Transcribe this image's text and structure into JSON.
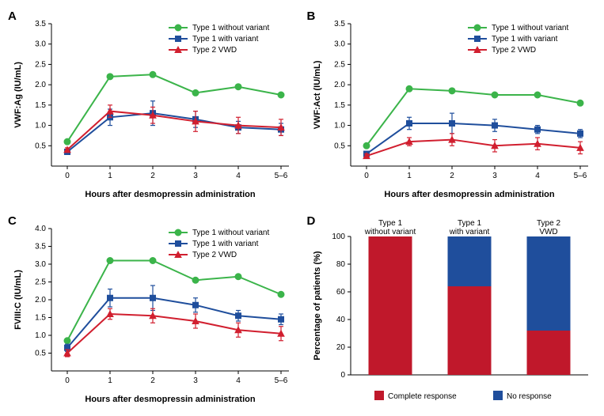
{
  "colors": {
    "type1_no_variant": "#3bb44a",
    "type1_variant": "#1f4e9c",
    "type2": "#d11f2f",
    "complete": "#c0182b",
    "noresp": "#1f4e9c",
    "axis": "#000000",
    "bg": "#ffffff"
  },
  "legend_series": [
    {
      "key": "type1_no_variant",
      "label": "Type 1 without variant",
      "marker": "circle"
    },
    {
      "key": "type1_variant",
      "label": "Type 1 with variant",
      "marker": "square"
    },
    {
      "key": "type2",
      "label": "Type 2 VWD",
      "marker": "triangle"
    }
  ],
  "x_categories": [
    "0",
    "1",
    "2",
    "3",
    "4",
    "5–6"
  ],
  "panels": {
    "A": {
      "label": "A",
      "ylabel": "VWF:Ag (IU/mL)",
      "xlabel": "Hours after desmopressin administration",
      "ylim": [
        0,
        3.5
      ],
      "ytick": 0.5,
      "series": {
        "type1_no_variant": {
          "y": [
            0.6,
            2.2,
            2.25,
            1.8,
            1.95,
            1.75
          ],
          "err": [
            0,
            0,
            0,
            0,
            0,
            0
          ]
        },
        "type1_variant": {
          "y": [
            0.35,
            1.2,
            1.3,
            1.15,
            0.95,
            0.9
          ],
          "err": [
            0.05,
            0.2,
            0.3,
            0.2,
            0.15,
            0.15
          ]
        },
        "type2": {
          "y": [
            0.4,
            1.35,
            1.25,
            1.1,
            1.0,
            0.95
          ],
          "err": [
            0.05,
            0.15,
            0.2,
            0.25,
            0.2,
            0.2
          ]
        }
      }
    },
    "B": {
      "label": "B",
      "ylabel": "VWF:Act (IU/mL)",
      "xlabel": "Hours after desmopressin administration",
      "ylim": [
        0,
        3.5
      ],
      "ytick": 0.5,
      "series": {
        "type1_no_variant": {
          "y": [
            0.5,
            1.9,
            1.85,
            1.75,
            1.75,
            1.55
          ],
          "err": [
            0,
            0,
            0,
            0,
            0,
            0
          ]
        },
        "type1_variant": {
          "y": [
            0.3,
            1.05,
            1.05,
            1.0,
            0.9,
            0.8
          ],
          "err": [
            0.05,
            0.15,
            0.25,
            0.15,
            0.1,
            0.1
          ]
        },
        "type2": {
          "y": [
            0.25,
            0.6,
            0.65,
            0.5,
            0.55,
            0.45
          ],
          "err": [
            0.05,
            0.1,
            0.15,
            0.15,
            0.15,
            0.15
          ]
        }
      }
    },
    "C": {
      "label": "C",
      "ylabel": "FVIII:C (IU/mL)",
      "xlabel": "Hours after desmopressin administration",
      "ylim": [
        0,
        4.0
      ],
      "ytick": 0.5,
      "series": {
        "type1_no_variant": {
          "y": [
            0.85,
            3.1,
            3.1,
            2.55,
            2.65,
            2.15
          ],
          "err": [
            0,
            0,
            0,
            0,
            0,
            0
          ]
        },
        "type1_variant": {
          "y": [
            0.65,
            2.05,
            2.05,
            1.85,
            1.55,
            1.45
          ],
          "err": [
            0.1,
            0.25,
            0.35,
            0.2,
            0.15,
            0.15
          ]
        },
        "type2": {
          "y": [
            0.5,
            1.6,
            1.55,
            1.4,
            1.15,
            1.05
          ],
          "err": [
            0.1,
            0.15,
            0.2,
            0.2,
            0.2,
            0.2
          ]
        }
      }
    },
    "D": {
      "label": "D",
      "ylabel": "Percentage of patients (%)",
      "categories": [
        "Type 1\nwithout variant",
        "Type 1\nwith variant",
        "Type 2\nVWD"
      ],
      "ylim": [
        0,
        100
      ],
      "ytick": 20,
      "bars": [
        {
          "complete": 100,
          "noresp": 0
        },
        {
          "complete": 64,
          "noresp": 36
        },
        {
          "complete": 32,
          "noresp": 68
        }
      ],
      "legend": [
        {
          "key": "complete",
          "label": "Complete response"
        },
        {
          "key": "noresp",
          "label": "No response"
        }
      ]
    }
  }
}
